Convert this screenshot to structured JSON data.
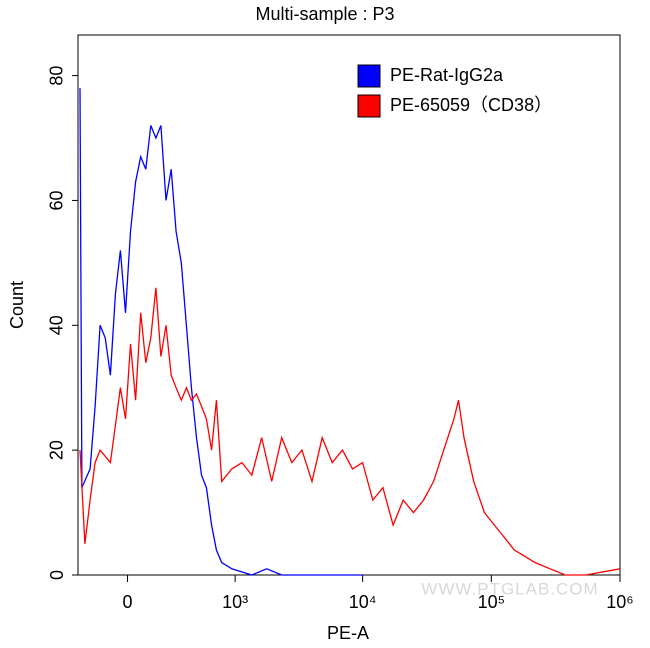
{
  "chart_data": {
    "type": "line",
    "title": "Multi-sample : P3",
    "x_label": "PE-A",
    "y_label": "Count",
    "watermark": "WWW.PTGLAB.COM",
    "xscale": "biexponential",
    "xlim": [
      -300,
      1000000
    ],
    "ylim": [
      0,
      86.5
    ],
    "xticks": [
      0,
      {
        "value": 1000,
        "label": "10³"
      },
      {
        "value": 10000,
        "label": "10⁴"
      },
      {
        "value": 100000,
        "label": "10⁵"
      },
      {
        "value": 1000000,
        "label": "10⁶"
      }
    ],
    "yticks": [
      0,
      20,
      40,
      60,
      80
    ],
    "legend": "top-right",
    "series": [
      {
        "name": "PE-Rat-IgG2a",
        "color": "#0000ff",
        "x": [
          -285,
          -271,
          -215,
          -183,
          -152,
          -122,
          -93,
          -65,
          -38,
          -11,
          16,
          43,
          71,
          99,
          128,
          158,
          189,
          222,
          257,
          293,
          333,
          375,
          420,
          469,
          520,
          575,
          638,
          700,
          776,
          939,
          1361,
          1786,
          2343,
          6970,
          10000
        ],
        "values": [
          78,
          14,
          17,
          27,
          40,
          38,
          32,
          45,
          52,
          42,
          55,
          63,
          67,
          65,
          72,
          70,
          72,
          60,
          65,
          55,
          50,
          40,
          30,
          22,
          16,
          14,
          8,
          4,
          2,
          1,
          0,
          1,
          0,
          0,
          0
        ]
      },
      {
        "name": "PE-65059（CD38）",
        "color": "#ff0000",
        "x": [
          -285,
          -250,
          -215,
          -183,
          -152,
          -93,
          -65,
          -38,
          -11,
          16,
          43,
          71,
          99,
          128,
          158,
          189,
          222,
          257,
          293,
          333,
          375,
          420,
          469,
          520,
          575,
          638,
          700,
          776,
          939,
          1135,
          1361,
          1630,
          1956,
          2343,
          2808,
          3370,
          4037,
          4850,
          5800,
          6970,
          8340,
          10000,
          11990,
          14370,
          17240,
          20660,
          24800,
          29700,
          35600,
          42700,
          51200,
          55600,
          61400,
          73000,
          88300,
          105600,
          126500,
          151000,
          182000,
          218000,
          286000,
          376000,
          541000,
          1000000
        ],
        "values": [
          20,
          5,
          12,
          18,
          20,
          18,
          24,
          30,
          25,
          37,
          28,
          42,
          34,
          38,
          46,
          35,
          40,
          32,
          30,
          28,
          30,
          28,
          29,
          27,
          25,
          20,
          28,
          15,
          17,
          18,
          16,
          22,
          15,
          22,
          18,
          20,
          15,
          22,
          18,
          20,
          17,
          18,
          12,
          14,
          8,
          12,
          10,
          12,
          15,
          20,
          25,
          28,
          22,
          15,
          10,
          8,
          6,
          4,
          3,
          2,
          1,
          0,
          0,
          1
        ]
      }
    ]
  }
}
